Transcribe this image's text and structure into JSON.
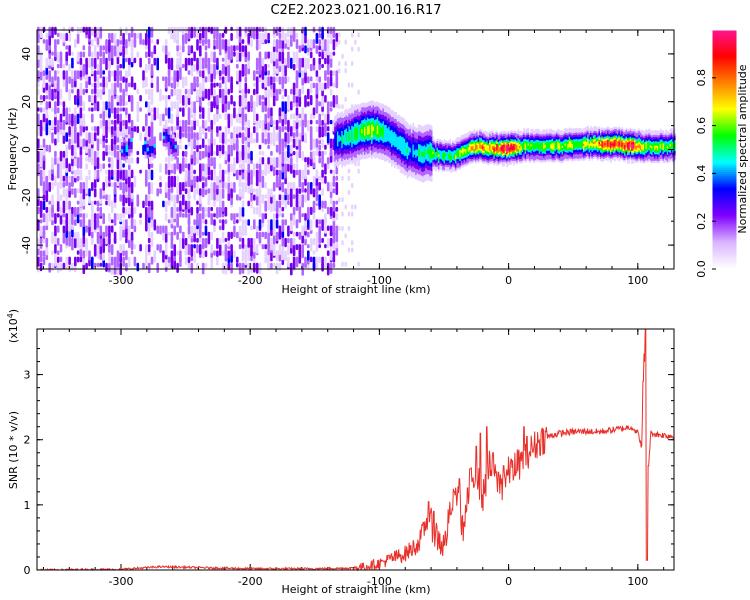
{
  "title": "C2E2.2023.021.00.16.R17",
  "chart_data": [
    {
      "type": "heatmap",
      "name": "spectrogram",
      "xlabel": "Height of straight line (km)",
      "ylabel": "Frequency (Hz)",
      "xlim": [
        -365,
        128
      ],
      "ylim": [
        -50,
        50
      ],
      "xticks": [
        -300,
        -200,
        -100,
        0,
        100
      ],
      "xtick_labels": [
        "-300",
        "-200",
        "-100",
        "0",
        "100"
      ],
      "yticks": [
        -40,
        -20,
        0,
        20,
        40
      ],
      "ytick_labels": [
        "-40",
        "-20",
        "0",
        "20",
        "40"
      ],
      "colorbar": {
        "label": "Normalized spectral amplitude",
        "range": [
          0,
          1
        ],
        "ticks": [
          0.0,
          0.2,
          0.4,
          0.6,
          0.8
        ],
        "tick_labels": [
          "0.0",
          "0.2",
          "0.4",
          "0.6",
          "0.8"
        ],
        "colors": [
          "#e6d2ff",
          "#b066ff",
          "#7700ee",
          "#0000ff",
          "#00e6ff",
          "#00ff00",
          "#ffff00",
          "#ff8000",
          "#ff0040",
          "#ff1493"
        ]
      },
      "noise_region": {
        "x_from": -365,
        "x_to": -132,
        "amplitude": 0.15
      },
      "noise_gaps": [
        [
          -292,
          -282
        ],
        [
          -275,
          -268
        ]
      ],
      "tail_noise": {
        "x_from": -132,
        "x_to": -115
      },
      "signal_center": [
        [
          -135,
          3
        ],
        [
          -125,
          5
        ],
        [
          -115,
          7
        ],
        [
          -105,
          8
        ],
        [
          -98,
          7
        ],
        [
          -90,
          4
        ],
        [
          -80,
          0
        ],
        [
          -70,
          -2
        ],
        [
          -60,
          -2
        ],
        [
          -50,
          -3
        ],
        [
          -42,
          -3
        ],
        [
          -35,
          -1
        ],
        [
          -25,
          1
        ],
        [
          -15,
          0
        ],
        [
          -8,
          0
        ],
        [
          0,
          0
        ],
        [
          10,
          1
        ],
        [
          20,
          1
        ],
        [
          40,
          1
        ],
        [
          60,
          2
        ],
        [
          80,
          2
        ],
        [
          100,
          1
        ],
        [
          110,
          1
        ],
        [
          128,
          1
        ]
      ],
      "signal_amplitude": [
        [
          -135,
          0.45
        ],
        [
          -120,
          0.55
        ],
        [
          -105,
          0.65
        ],
        [
          -90,
          0.5
        ],
        [
          -75,
          0.45
        ],
        [
          -60,
          0.55
        ],
        [
          -45,
          0.55
        ],
        [
          -30,
          0.7
        ],
        [
          -15,
          0.75
        ],
        [
          0,
          0.95
        ],
        [
          10,
          0.65
        ],
        [
          30,
          0.62
        ],
        [
          60,
          0.65
        ],
        [
          75,
          0.85
        ],
        [
          95,
          0.9
        ],
        [
          105,
          0.6
        ],
        [
          128,
          0.6
        ]
      ],
      "signal_width_hz": 4,
      "early_burst": {
        "x_from": -300,
        "x_to": -258,
        "center_hz": 2,
        "amplitude": 0.45
      }
    },
    {
      "type": "line",
      "name": "snr",
      "xlabel": "Height of straight line (km)",
      "ylabel": "SNR (10 * v/v)",
      "scale_note": "(x10",
      "scale_exponent": "4",
      "scale_close": ")",
      "xlim": [
        -365,
        128
      ],
      "ylim": [
        0,
        3.7
      ],
      "xticks": [
        -300,
        -200,
        -100,
        0,
        100
      ],
      "xtick_labels": [
        "-300",
        "-200",
        "-100",
        "0",
        "100"
      ],
      "yticks": [
        0,
        1,
        2,
        3
      ],
      "ytick_labels": [
        "0",
        "1",
        "2",
        "3"
      ],
      "color": "#e8302a",
      "series": [
        {
          "x": [
            -365,
            -300,
            -270,
            -200,
            -150,
            -120,
            -110,
            -100,
            -90,
            -80,
            -70,
            -62,
            -55,
            -50,
            -45,
            -40,
            -35,
            -30,
            -25,
            -20,
            -15,
            -10,
            -5,
            0,
            5,
            10,
            15,
            20,
            25,
            30,
            40,
            50,
            60,
            70,
            80,
            90,
            95,
            100,
            103,
            105,
            107,
            110,
            115,
            120,
            128
          ],
          "y": [
            0.0,
            0.01,
            0.05,
            0.02,
            0.02,
            0.03,
            0.06,
            0.1,
            0.18,
            0.25,
            0.4,
            0.8,
            0.5,
            0.35,
            0.9,
            1.2,
            0.6,
            1.3,
            1.5,
            1.1,
            1.6,
            1.4,
            1.3,
            1.5,
            1.6,
            1.65,
            1.8,
            1.9,
            2.0,
            2.05,
            2.1,
            2.12,
            2.13,
            2.12,
            2.15,
            2.18,
            2.2,
            2.1,
            1.9,
            3.5,
            1.2,
            2.1,
            2.08,
            2.07,
            2.05
          ]
        }
      ],
      "spikes": [
        [
          -62,
          1.05
        ],
        [
          -58,
          0.9
        ],
        [
          -45,
          0.85
        ],
        [
          -42,
          1.2
        ],
        [
          -38,
          1.4
        ],
        [
          -30,
          1.55
        ],
        [
          -25,
          1.9
        ],
        [
          -22,
          2.1
        ],
        [
          -17,
          2.2
        ],
        [
          -12,
          1.8
        ],
        [
          -8,
          1.5
        ],
        [
          -4,
          1.6
        ],
        [
          2,
          1.7
        ],
        [
          6,
          1.5
        ],
        [
          12,
          2.2
        ],
        [
          14,
          2.05
        ],
        [
          104,
          2.9
        ],
        [
          106,
          3.7
        ],
        [
          107,
          0.15
        ],
        [
          108,
          1.6
        ]
      ]
    }
  ]
}
